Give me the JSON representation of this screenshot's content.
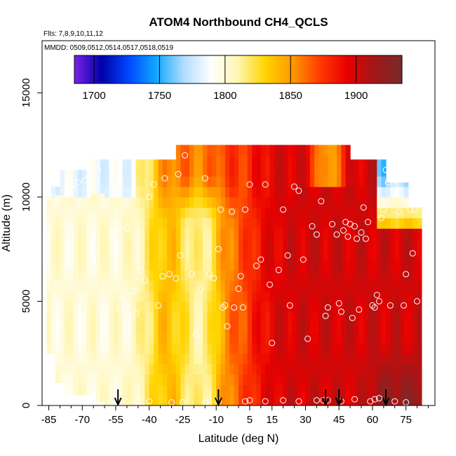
{
  "chart_data": {
    "type": "heatmap",
    "title": "ATOM4 Northbound CH4_QCLS",
    "subtitle_flights": "Flts: 7,8,9,10,11,12",
    "subtitle_dates": "MMDD: 0509,0512,0514,0517,0518,0519",
    "xlabel": "Latitude (deg N)",
    "ylabel": "Altitude (m)",
    "xlim": [
      -88,
      88
    ],
    "ylim": [
      0,
      17500
    ],
    "x_ticks": [
      -85,
      -70,
      -55,
      -40,
      -25,
      -10,
      5,
      15,
      30,
      45,
      60,
      75
    ],
    "x_tick_labels": [
      "-85",
      "-70",
      "-55",
      "-40",
      "-25",
      "-10",
      "5",
      "15",
      "30",
      "45",
      "60",
      "75"
    ],
    "x_minor_ticks": [
      -80,
      -75,
      -65,
      -60,
      -50,
      -45,
      -35,
      -30,
      -20,
      -15,
      -5,
      0,
      10,
      20,
      25,
      35,
      40,
      50,
      55,
      65,
      70,
      80,
      85
    ],
    "y_ticks": [
      0,
      5000,
      10000,
      15000
    ],
    "y_tick_labels": [
      "0",
      "5000",
      "10000",
      "15000"
    ],
    "colorbar": {
      "range": [
        1685,
        1935
      ],
      "ticks": [
        1700,
        1750,
        1800,
        1850,
        1900
      ],
      "tick_labels": [
        "1700",
        "1750",
        "1800",
        "1850",
        "1900"
      ],
      "colors": [
        "#7a22e8",
        "#0000a8",
        "#0048ff",
        "#10a8ff",
        "#b0dcff",
        "#ffffff",
        "#fff6b0",
        "#ffd400",
        "#ff9800",
        "#ff3a00",
        "#e80000",
        "#a01818",
        "#7a2a2a"
      ]
    },
    "profile_latitudes_arrows": [
      -54,
      -9,
      39,
      45,
      66
    ],
    "observations": [
      {
        "lat": -87,
        "alt": 7000
      },
      {
        "lat": -85,
        "alt": 10000
      },
      {
        "lat": -83,
        "alt": 10000
      },
      {
        "lat": -81,
        "alt": 5800
      },
      {
        "lat": -78,
        "alt": 1300
      },
      {
        "lat": -77,
        "alt": 6700
      },
      {
        "lat": -75,
        "alt": 10500
      },
      {
        "lat": -72,
        "alt": 10700
      },
      {
        "lat": -69,
        "alt": 10800
      },
      {
        "lat": -67,
        "alt": 11000
      },
      {
        "lat": -65,
        "alt": 11300
      },
      {
        "lat": -63,
        "alt": 11300
      },
      {
        "lat": -60,
        "alt": 5800
      },
      {
        "lat": -57,
        "alt": 8300
      },
      {
        "lat": -54,
        "alt": 8500
      },
      {
        "lat": -53,
        "alt": 4600
      },
      {
        "lat": -52,
        "alt": 5100
      },
      {
        "lat": -51,
        "alt": 4800
      },
      {
        "lat": -50,
        "alt": 8500
      },
      {
        "lat": -47,
        "alt": 5500
      },
      {
        "lat": -46,
        "alt": 4400
      },
      {
        "lat": -44,
        "alt": 6500
      },
      {
        "lat": -42,
        "alt": 6000
      },
      {
        "lat": -40,
        "alt": 10000
      },
      {
        "lat": -38,
        "alt": 10600
      },
      {
        "lat": -36,
        "alt": 4800
      },
      {
        "lat": -34,
        "alt": 6200
      },
      {
        "lat": -33,
        "alt": 10900
      },
      {
        "lat": -31,
        "alt": 6300
      },
      {
        "lat": -28,
        "alt": 6100
      },
      {
        "lat": -27,
        "alt": 11100
      },
      {
        "lat": -26,
        "alt": 7200
      },
      {
        "lat": -24,
        "alt": 12000
      },
      {
        "lat": -21,
        "alt": 6300
      },
      {
        "lat": -19,
        "alt": 3400
      },
      {
        "lat": -17,
        "alt": 5600
      },
      {
        "lat": -15,
        "alt": 10900
      },
      {
        "lat": -13,
        "alt": 6300
      },
      {
        "lat": -11,
        "alt": 6100
      },
      {
        "lat": -9,
        "alt": 7500
      },
      {
        "lat": -8,
        "alt": 9400
      },
      {
        "lat": -7,
        "alt": 4700
      },
      {
        "lat": -6,
        "alt": 4800
      },
      {
        "lat": -5,
        "alt": 3800
      },
      {
        "lat": -3,
        "alt": 9300
      },
      {
        "lat": -2,
        "alt": 4700
      },
      {
        "lat": 0,
        "alt": 5600
      },
      {
        "lat": 1,
        "alt": 6200
      },
      {
        "lat": 2,
        "alt": 4700
      },
      {
        "lat": 3,
        "alt": 9400
      },
      {
        "lat": 5,
        "alt": 10600
      },
      {
        "lat": 8,
        "alt": 6700
      },
      {
        "lat": 10,
        "alt": 7000
      },
      {
        "lat": 12,
        "alt": 10600
      },
      {
        "lat": 14,
        "alt": 5800
      },
      {
        "lat": 15,
        "alt": 3000
      },
      {
        "lat": 18,
        "alt": 6500
      },
      {
        "lat": 20,
        "alt": 9400
      },
      {
        "lat": 22,
        "alt": 7200
      },
      {
        "lat": 23,
        "alt": 4800
      },
      {
        "lat": 25,
        "alt": 10500
      },
      {
        "lat": 27,
        "alt": 10300
      },
      {
        "lat": 29,
        "alt": 7000
      },
      {
        "lat": 31,
        "alt": 3200
      },
      {
        "lat": 33,
        "alt": 8600
      },
      {
        "lat": 35,
        "alt": 8200
      },
      {
        "lat": 37,
        "alt": 9800
      },
      {
        "lat": 39,
        "alt": 4300
      },
      {
        "lat": 40,
        "alt": 4700
      },
      {
        "lat": 42,
        "alt": 8700
      },
      {
        "lat": 44,
        "alt": 8200
      },
      {
        "lat": 45,
        "alt": 4900
      },
      {
        "lat": 46,
        "alt": 4500
      },
      {
        "lat": 47,
        "alt": 8400
      },
      {
        "lat": 48,
        "alt": 8800
      },
      {
        "lat": 49,
        "alt": 8100
      },
      {
        "lat": 50,
        "alt": 8700
      },
      {
        "lat": 51,
        "alt": 4200
      },
      {
        "lat": 52,
        "alt": 8600
      },
      {
        "lat": 53,
        "alt": 8000
      },
      {
        "lat": 54,
        "alt": 4600
      },
      {
        "lat": 55,
        "alt": 8300
      },
      {
        "lat": 56,
        "alt": 9500
      },
      {
        "lat": 57,
        "alt": 8000
      },
      {
        "lat": 58,
        "alt": 8800
      },
      {
        "lat": 60,
        "alt": 4800
      },
      {
        "lat": 61,
        "alt": 4700
      },
      {
        "lat": 62,
        "alt": 5300
      },
      {
        "lat": 63,
        "alt": 5000
      },
      {
        "lat": 64,
        "alt": 9000
      },
      {
        "lat": 65,
        "alt": 9400
      },
      {
        "lat": 66,
        "alt": 11300
      },
      {
        "lat": 67,
        "alt": 10700
      },
      {
        "lat": 68,
        "alt": 4800
      },
      {
        "lat": 70,
        "alt": 10800
      },
      {
        "lat": 71,
        "alt": 11000
      },
      {
        "lat": 72,
        "alt": 9300
      },
      {
        "lat": 74,
        "alt": 4800
      },
      {
        "lat": 75,
        "alt": 6300
      },
      {
        "lat": 77,
        "alt": 9400
      },
      {
        "lat": 78,
        "alt": 7300
      },
      {
        "lat": 79,
        "alt": 9400
      },
      {
        "lat": 80,
        "alt": 5000
      },
      {
        "lat": -55,
        "alt": 150
      },
      {
        "lat": -50,
        "alt": 200
      },
      {
        "lat": -45,
        "alt": 150
      },
      {
        "lat": -40,
        "alt": 200
      },
      {
        "lat": -30,
        "alt": 150
      },
      {
        "lat": -25,
        "alt": 150
      },
      {
        "lat": -15,
        "alt": 150
      },
      {
        "lat": -9,
        "alt": 200
      },
      {
        "lat": 3,
        "alt": 200
      },
      {
        "lat": 5,
        "alt": 250
      },
      {
        "lat": 12,
        "alt": 200
      },
      {
        "lat": 20,
        "alt": 250
      },
      {
        "lat": 27,
        "alt": 200
      },
      {
        "lat": 35,
        "alt": 250
      },
      {
        "lat": 38,
        "alt": 250
      },
      {
        "lat": 40,
        "alt": 250
      },
      {
        "lat": 46,
        "alt": 200
      },
      {
        "lat": 52,
        "alt": 300
      },
      {
        "lat": 59,
        "alt": 200
      },
      {
        "lat": 61,
        "alt": 300
      },
      {
        "lat": 63,
        "alt": 350
      },
      {
        "lat": 70,
        "alt": 200
      },
      {
        "lat": 75,
        "alt": 150
      }
    ]
  }
}
